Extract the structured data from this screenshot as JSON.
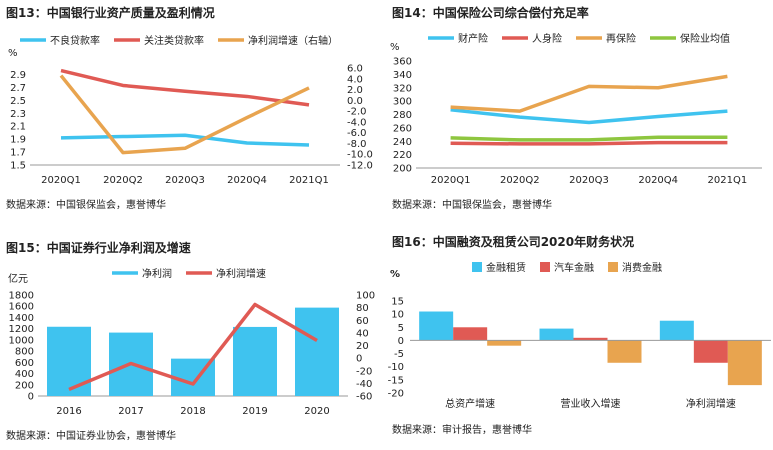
{
  "figures": [
    {
      "title": "图13：中国银行业资产质量及盈利情况",
      "source": "数据来源：中国银保监会，惠誉博华"
    },
    {
      "title": "图14：中国保险公司综合偿付充足率",
      "source": "数据来源：中国银保监会，惠誉博华"
    },
    {
      "title": "图15：中国证券行业净利润及增速",
      "source": "数据来源：中国证券业协会，惠誉博华"
    },
    {
      "title": "图16：中国融资及租赁公司2020年财务状况",
      "source": "数据来源：审计报告，惠誉博华"
    }
  ],
  "chart_data": [
    {
      "type": "line",
      "categories": [
        "2020Q1",
        "2020Q2",
        "2020Q3",
        "2020Q4",
        "2021Q1"
      ],
      "ylabel": "%",
      "ylim": [
        1.5,
        3.0
      ],
      "yticks": [
        "1.5",
        "1.7",
        "1.9",
        "2.1",
        "2.3",
        "2.5",
        "2.7",
        "2.9"
      ],
      "y2lim": [
        -12.0,
        6.0
      ],
      "y2ticks": [
        "-12.0",
        "-10.0",
        "-8.0",
        "-6.0",
        "-4.0",
        "-2.0",
        "0.0",
        "2.0",
        "4.0",
        "6.0"
      ],
      "series": [
        {
          "name": "不良贷款率",
          "axis": "left",
          "color": "#3fc3ef",
          "values": [
            1.92,
            1.94,
            1.96,
            1.84,
            1.81
          ]
        },
        {
          "name": "关注类贷款率",
          "axis": "left",
          "color": "#e05a54",
          "values": [
            2.96,
            2.73,
            2.64,
            2.56,
            2.43
          ]
        },
        {
          "name": "净利润增速（右轴）",
          "axis": "right",
          "color": "#e8a44f",
          "values": [
            4.6,
            -9.7,
            -8.9,
            -3.2,
            2.3
          ]
        }
      ],
      "legend": "top"
    },
    {
      "type": "line",
      "categories": [
        "2020Q1",
        "2020Q2",
        "2020Q3",
        "2020Q4",
        "2021Q1"
      ],
      "ylabel": "%",
      "ylim": [
        200,
        360
      ],
      "yticks": [
        "200",
        "220",
        "240",
        "260",
        "280",
        "300",
        "320",
        "340",
        "360"
      ],
      "series": [
        {
          "name": "财产险",
          "color": "#3fc3ef",
          "values": [
            287,
            276,
            268,
            277,
            285
          ]
        },
        {
          "name": "人身险",
          "color": "#e05a54",
          "values": [
            237,
            236,
            236,
            238,
            238
          ]
        },
        {
          "name": "再保险",
          "color": "#e8a44f",
          "values": [
            291,
            285,
            322,
            320,
            337
          ]
        },
        {
          "name": "保险业均值",
          "color": "#8ec63f",
          "values": [
            245,
            242,
            242,
            246,
            246
          ]
        }
      ],
      "legend": "top"
    },
    {
      "type": "bar",
      "categories": [
        "2016",
        "2017",
        "2018",
        "2019",
        "2020"
      ],
      "ylabel": "亿元",
      "ylim": [
        0,
        1800
      ],
      "yticks": [
        "0",
        "200",
        "400",
        "600",
        "800",
        "1000",
        "1200",
        "1400",
        "1600",
        "1800"
      ],
      "y2lim": [
        -60,
        100
      ],
      "y2ticks": [
        "-60",
        "-40",
        "-20",
        "0",
        "20",
        "40",
        "60",
        "80",
        "100"
      ],
      "series": [
        {
          "name": "净利润",
          "kind": "bar",
          "axis": "left",
          "color": "#3fc3ef",
          "values": [
            1234,
            1130,
            666,
            1231,
            1575
          ]
        },
        {
          "name": "净利润增速",
          "kind": "line",
          "axis": "right",
          "color": "#e05a54",
          "values": [
            -49.6,
            -8.5,
            -41.0,
            85.0,
            27.9
          ]
        }
      ],
      "legend": "top"
    },
    {
      "type": "bar",
      "categories": [
        "总资产增速",
        "营业收入增速",
        "净利润增速"
      ],
      "ylabel": "%",
      "ylim": [
        -20,
        15
      ],
      "yticks": [
        "-20",
        "-15",
        "-10",
        "-5",
        "0",
        "5",
        "10",
        "15"
      ],
      "series": [
        {
          "name": "金融租赁",
          "color": "#3fc3ef",
          "values": [
            11,
            4.5,
            7.5
          ]
        },
        {
          "name": "汽车金融",
          "color": "#e05a54",
          "values": [
            5,
            1,
            -8.5
          ]
        },
        {
          "name": "消费金融",
          "color": "#e8a44f",
          "values": [
            -2,
            -8.5,
            -17
          ]
        }
      ],
      "legend": "top"
    }
  ]
}
